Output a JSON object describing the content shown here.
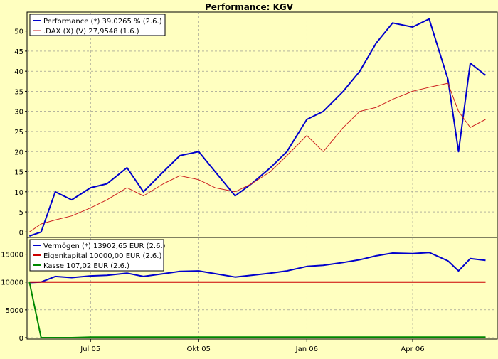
{
  "title": "Performance: KGV",
  "colors": {
    "background": "#ffffc0",
    "performance": "#0000cc",
    "dax": "#cc2020",
    "vermoegen": "#0000cc",
    "eigenkapital": "#cc0000",
    "kasse": "#008800",
    "grid": "#888888"
  },
  "x_axis": {
    "ticks": [
      "Jul 05",
      "Okt 05",
      "Jan 06",
      "Apr 06"
    ]
  },
  "chart_data": [
    {
      "type": "line",
      "ylim": [
        -1,
        54
      ],
      "yticks": [
        0,
        5,
        10,
        15,
        20,
        25,
        30,
        35,
        40,
        45,
        50
      ],
      "grid": true,
      "legend_position": "top-left",
      "x": [
        "2005-05-10",
        "2005-05-20",
        "2005-06-01",
        "2005-06-15",
        "2005-07-01",
        "2005-07-15",
        "2005-08-01",
        "2005-08-15",
        "2005-09-01",
        "2005-09-15",
        "2005-10-01",
        "2005-10-15",
        "2005-11-01",
        "2005-11-15",
        "2005-12-01",
        "2005-12-15",
        "2006-01-01",
        "2006-01-15",
        "2006-02-01",
        "2006-02-15",
        "2006-03-01",
        "2006-03-15",
        "2006-04-01",
        "2006-04-15",
        "2006-05-01",
        "2006-05-10",
        "2006-05-20",
        "2006-06-02"
      ],
      "series": [
        {
          "name": "Performance (*) 39,0265 % (2.6.)",
          "values": [
            -1,
            0,
            10,
            8,
            11,
            12,
            16,
            10,
            15,
            19,
            20,
            15,
            9,
            12,
            16,
            20,
            28,
            30,
            35,
            40,
            47,
            52,
            51,
            53,
            38,
            20,
            42,
            39
          ]
        },
        {
          "name": ".DAX (X) (V) 27,9548 (1.6.)",
          "values": [
            0,
            2,
            3,
            4,
            6,
            8,
            11,
            9,
            12,
            14,
            13,
            11,
            10,
            12,
            15,
            19,
            24,
            20,
            26,
            30,
            31,
            33,
            35,
            36,
            37,
            30,
            26,
            28
          ]
        }
      ]
    },
    {
      "type": "line",
      "ylim": [
        0,
        17500
      ],
      "yticks": [
        0,
        5000,
        10000,
        15000
      ],
      "grid": true,
      "legend_position": "top-left",
      "x": [
        "2005-05-10",
        "2005-05-20",
        "2005-06-01",
        "2005-06-15",
        "2005-07-01",
        "2005-07-15",
        "2005-08-01",
        "2005-08-15",
        "2005-09-01",
        "2005-09-15",
        "2005-10-01",
        "2005-10-15",
        "2005-11-01",
        "2005-11-15",
        "2005-12-01",
        "2005-12-15",
        "2006-01-01",
        "2006-01-15",
        "2006-02-01",
        "2006-02-15",
        "2006-03-01",
        "2006-03-15",
        "2006-04-01",
        "2006-04-15",
        "2006-05-01",
        "2006-05-10",
        "2006-05-20",
        "2006-06-02"
      ],
      "series": [
        {
          "name": "Vermögen (*) 13902,65 EUR (2.6.)",
          "values": [
            9900,
            10000,
            11000,
            10800,
            11100,
            11200,
            11600,
            11000,
            11500,
            11900,
            12000,
            11500,
            10900,
            11200,
            11600,
            12000,
            12800,
            13000,
            13500,
            14000,
            14700,
            15200,
            15100,
            15300,
            13800,
            12000,
            14200,
            13900
          ]
        },
        {
          "name": "Eigenkapital 10000,00 EUR (2.6.)",
          "values": [
            10000,
            10000,
            10000,
            10000,
            10000,
            10000,
            10000,
            10000,
            10000,
            10000,
            10000,
            10000,
            10000,
            10000,
            10000,
            10000,
            10000,
            10000,
            10000,
            10000,
            10000,
            10000,
            10000,
            10000,
            10000,
            10000,
            10000,
            10000
          ]
        },
        {
          "name": "Kasse 107,02 EUR (2.6.)",
          "values": [
            10000,
            0,
            0,
            0,
            100,
            100,
            100,
            100,
            100,
            100,
            100,
            100,
            100,
            100,
            100,
            100,
            100,
            100,
            100,
            100,
            100,
            100,
            100,
            100,
            100,
            107,
            107,
            107
          ]
        }
      ]
    }
  ]
}
